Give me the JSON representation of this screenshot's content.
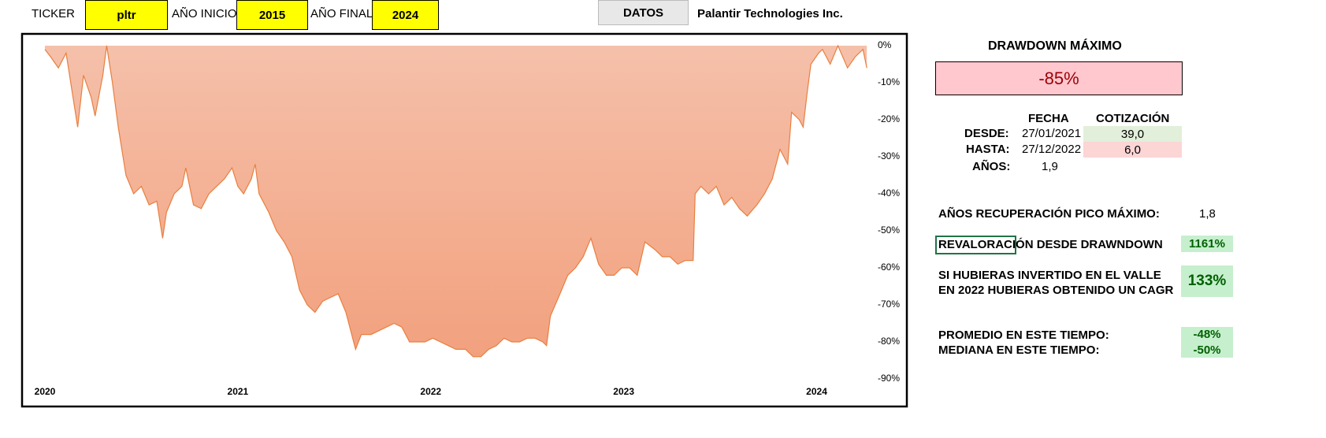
{
  "header": {
    "ticker_label": "TICKER",
    "ticker": "pltr",
    "start_label": "AÑO INICIO",
    "start_year": "2015",
    "end_label": "AÑO FINAL",
    "end_year": "2024",
    "button": "DATOS",
    "company": "Palantir Technologies Inc."
  },
  "chart_data": {
    "type": "area",
    "x": [
      2020.0,
      2020.03,
      2020.07,
      2020.11,
      2020.17,
      2020.2,
      2020.24,
      2020.26,
      2020.3,
      2020.32,
      2020.35,
      2020.38,
      2020.42,
      2020.46,
      2020.5,
      2020.54,
      2020.58,
      2020.61,
      2020.63,
      2020.67,
      2020.71,
      2020.73,
      2020.77,
      2020.81,
      2020.85,
      2020.89,
      2020.93,
      2020.97,
      2021.0,
      2021.03,
      2021.07,
      2021.09,
      2021.11,
      2021.16,
      2021.2,
      2021.24,
      2021.28,
      2021.32,
      2021.36,
      2021.4,
      2021.44,
      2021.48,
      2021.52,
      2021.56,
      2021.61,
      2021.64,
      2021.69,
      2021.73,
      2021.77,
      2021.81,
      2021.85,
      2021.89,
      2021.93,
      2021.97,
      2022.01,
      2022.05,
      2022.09,
      2022.13,
      2022.18,
      2022.22,
      2022.26,
      2022.3,
      2022.34,
      2022.38,
      2022.42,
      2022.46,
      2022.5,
      2022.54,
      2022.58,
      2022.6,
      2022.62,
      2022.67,
      2022.71,
      2022.75,
      2022.79,
      2022.83,
      2022.87,
      2022.91,
      2022.95,
      2022.99,
      2023.03,
      2023.07,
      2023.11,
      2023.16,
      2023.2,
      2023.24,
      2023.28,
      2023.32,
      2023.36,
      2023.37,
      2023.4,
      2023.44,
      2023.48,
      2023.52,
      2023.56,
      2023.6,
      2023.64,
      2023.69,
      2023.73,
      2023.77,
      2023.81,
      2023.85,
      2023.87,
      2023.91,
      2023.93,
      2023.95,
      2023.97,
      2024.01,
      2024.03,
      2024.07,
      2024.11,
      2024.16,
      2024.2,
      2024.24,
      2024.26
    ],
    "values": [
      -1,
      -3,
      -6,
      -2,
      -22,
      -8,
      -14,
      -19,
      -8,
      0,
      -10,
      -22,
      -35,
      -40,
      -38,
      -43,
      -42,
      -52,
      -45,
      -40,
      -38,
      -33,
      -43,
      -44,
      -40,
      -38,
      -36,
      -33,
      -38,
      -40,
      -36,
      -32,
      -40,
      -45,
      -50,
      -53,
      -57,
      -66,
      -70,
      -72,
      -69,
      -68,
      -67,
      -72,
      -82,
      -78,
      -78,
      -77,
      -76,
      -75,
      -76,
      -80,
      -80,
      -80,
      -79,
      -80,
      -81,
      -82,
      -82,
      -84,
      -84,
      -82,
      -81,
      -79,
      -80,
      -80,
      -79,
      -79,
      -80,
      -81,
      -73,
      -67,
      -62,
      -60,
      -57,
      -52,
      -59,
      -62,
      -62,
      -60,
      -60,
      -62,
      -53,
      -55,
      -57,
      -57,
      -59,
      -58,
      -58,
      -40,
      -38,
      -40,
      -38,
      -43,
      -41,
      -44,
      -46,
      -43,
      -40,
      -36,
      -28,
      -32,
      -18,
      -20,
      -22,
      -13,
      -5,
      -2,
      -1,
      -5,
      0,
      -6,
      -3,
      -1,
      -6
    ],
    "color": "#e97f3f",
    "xlim": [
      2020,
      2024.3
    ],
    "xticks": [
      2020,
      2021,
      2022,
      2023,
      2024
    ],
    "ylim": [
      -90,
      0
    ],
    "yticks": [
      {
        "value": 0,
        "label": "0%"
      },
      {
        "value": -10,
        "label": "-10%"
      },
      {
        "value": -20,
        "label": "-20%"
      },
      {
        "value": -30,
        "label": "-30%"
      },
      {
        "value": -40,
        "label": "-40%"
      },
      {
        "value": -50,
        "label": "-50%"
      },
      {
        "value": -60,
        "label": "-60%"
      },
      {
        "value": -70,
        "label": "-70%"
      },
      {
        "value": -80,
        "label": "-80%"
      },
      {
        "value": -90,
        "label": "-90%"
      }
    ]
  },
  "panel": {
    "title": "DRAWDOWN MÁXIMO",
    "max_drawdown": "-85%",
    "col_date": "FECHA",
    "col_price": "COTIZACIÓN",
    "from_label": "DESDE:",
    "from_date": "27/01/2021",
    "from_price": "39,0",
    "to_label": "HASTA:",
    "to_date": "27/12/2022",
    "to_price": "6,0",
    "years_label": "AÑOS:",
    "years": "1,9",
    "recovery_label": "AÑOS RECUPERACIÓN PICO MÁXIMO:",
    "recovery": "1,8",
    "reval_label": "REVALORACIÓN DESDE DRAWNDOWN",
    "reval": "1161%",
    "cagr_line1": "SI HUBIERAS INVERTIDO EN EL VALLE",
    "cagr_line2": "EN 2022 HUBIERAS OBTENIDO UN CAGR",
    "cagr": "133%",
    "mean_label": "PROMEDIO EN ESTE TIEMPO:",
    "mean": "-48%",
    "median_label": "MEDIANA EN ESTE TIEMPO:",
    "median": "-50%"
  }
}
